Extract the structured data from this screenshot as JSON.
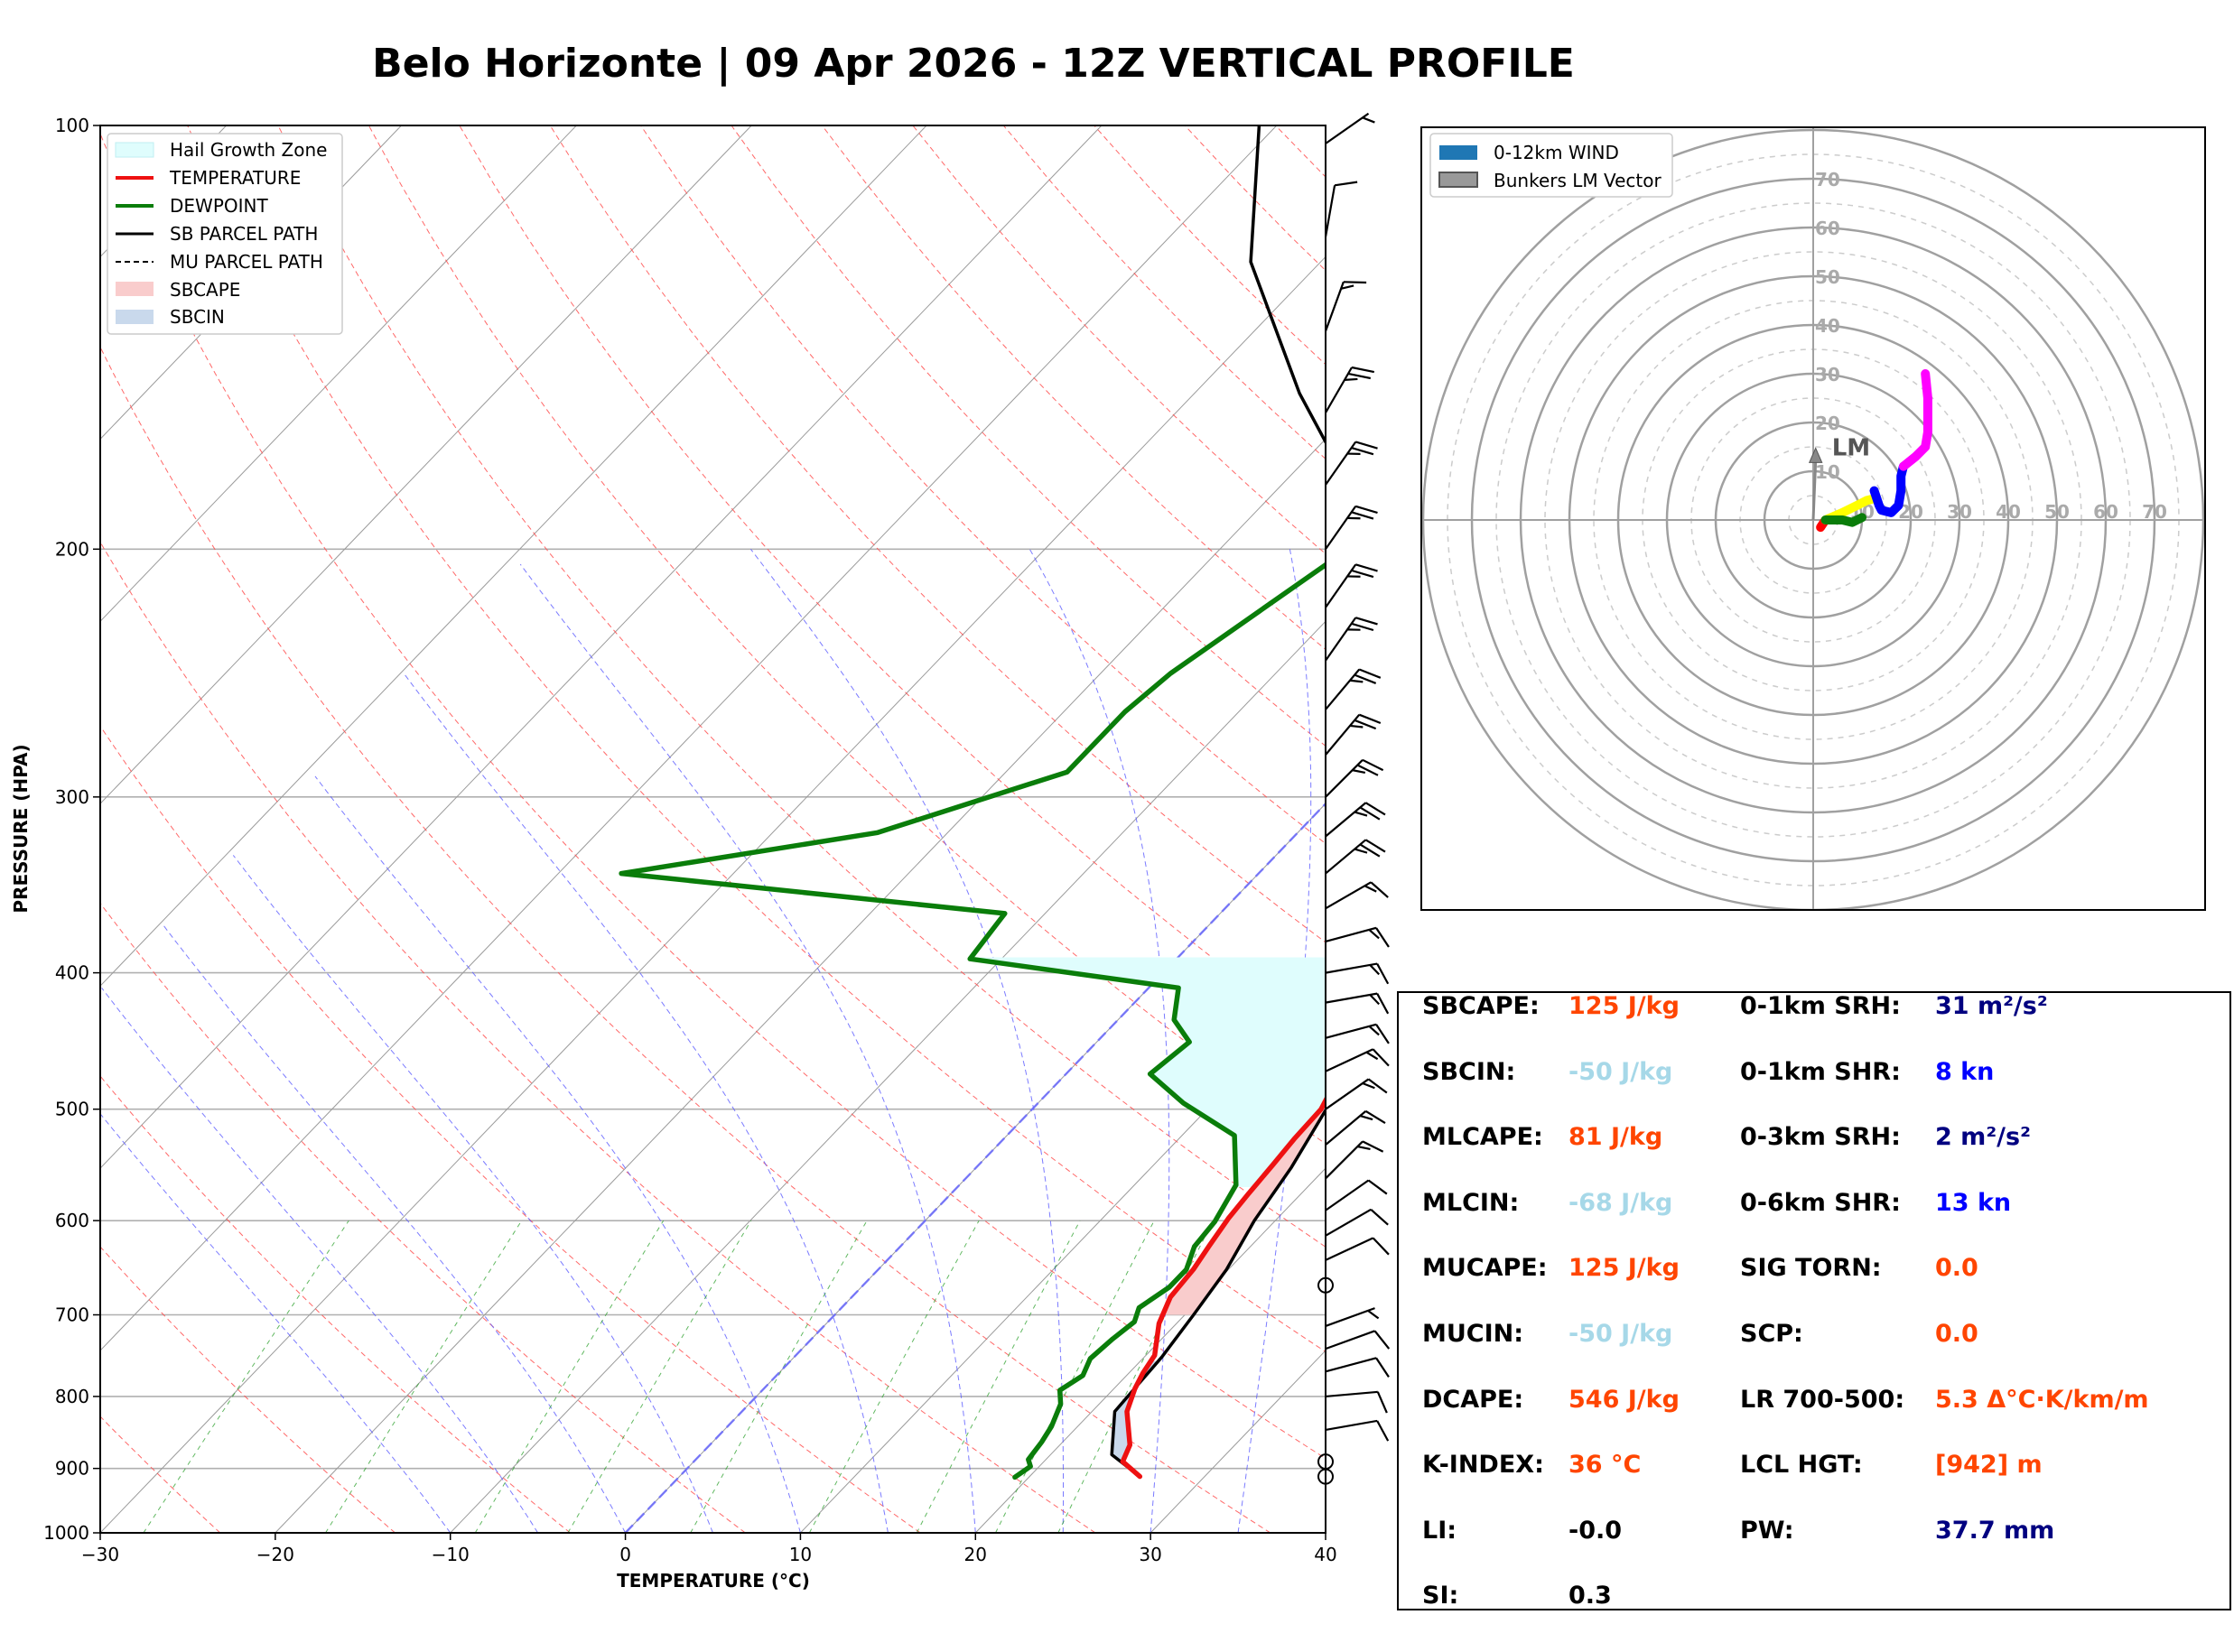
{
  "title": "Belo Horizonte | 09 Apr 2026 - 12Z VERTICAL PROFILE",
  "colors": {
    "temperature": "#ee1111",
    "dewpoint": "#0a7d0a",
    "parcel": "#000000",
    "hail": "#dffdfd",
    "sbcape": "#f9cccc",
    "sbcin": "#c9d9ec",
    "orange": "#ff4500",
    "lightblue": "#a6d8e8",
    "navy": "#000080",
    "blue": "#0000ff"
  },
  "chart_data": [
    {
      "type": "line",
      "title": "SKEW-T",
      "xlabel": "TEMPERATURE (°C)",
      "ylabel": "PRESSURE (HPA)",
      "xlim": [
        -30,
        40
      ],
      "ylim": [
        1000,
        100
      ],
      "x_ticks": [
        "−30",
        "−20",
        "−10",
        "0",
        "10",
        "20",
        "30",
        "40"
      ],
      "y_ticks": [
        "1000",
        "900",
        "800",
        "700",
        "600",
        "500",
        "400",
        "300",
        "200",
        "100"
      ],
      "legend": [
        "Hail Growth Zone",
        "TEMPERATURE",
        "DEWPOINT",
        "SB PARCEL PATH",
        "MU PARCEL PATH",
        "SBCAPE",
        "SBCIN"
      ],
      "series": [
        {
          "name": "TEMPERATURE",
          "points": [
            [
              26.3,
              912
            ],
            [
              24.5,
              890
            ],
            [
              24.0,
              866
            ],
            [
              22.0,
              820
            ],
            [
              21.2,
              790
            ],
            [
              20.8,
              770
            ],
            [
              20.5,
              748
            ],
            [
              19.0,
              710
            ],
            [
              18.2,
              680
            ],
            [
              18.0,
              650
            ],
            [
              17.6,
              625
            ],
            [
              17.2,
              598
            ],
            [
              17.0,
              575
            ],
            [
              16.8,
              548
            ],
            [
              16.6,
              525
            ],
            [
              16.5,
              500
            ],
            [
              15.5,
              468
            ],
            [
              14.3,
              440
            ],
            [
              12.9,
              408
            ],
            [
              11.4,
              372
            ],
            [
              9.8,
              345
            ],
            [
              5.7,
              300
            ],
            [
              -1.3,
              243
            ],
            [
              -6.2,
              200
            ],
            [
              -12.0,
              165
            ],
            [
              -18.8,
              130
            ],
            [
              -22.5,
              115
            ],
            [
              -21.0,
              100
            ]
          ]
        },
        {
          "name": "DEWPOINT",
          "points": [
            [
              19.2,
              913
            ],
            [
              19.5,
              897
            ],
            [
              19.0,
              887
            ],
            [
              18.8,
              862
            ],
            [
              18.5,
              840
            ],
            [
              17.8,
              810
            ],
            [
              17.0,
              792
            ],
            [
              17.5,
              773
            ],
            [
              17.0,
              752
            ],
            [
              17.2,
              728
            ],
            [
              17.5,
              708
            ],
            [
              17.0,
              692
            ],
            [
              17.6,
              669
            ],
            [
              17.6,
              650
            ],
            [
              16.8,
              626
            ],
            [
              16.6,
              601
            ],
            [
              15.8,
              566
            ],
            [
              13.0,
              522
            ],
            [
              8.3,
              495
            ],
            [
              4.8,
              472
            ],
            [
              5.3,
              448
            ],
            [
              3.2,
              432
            ],
            [
              1.7,
              410
            ],
            [
              -11.8,
              391
            ],
            [
              -12.3,
              363
            ],
            [
              -36.4,
              340
            ],
            [
              -24.0,
              318
            ],
            [
              -16.5,
              288
            ],
            [
              -16.5,
              261
            ],
            [
              -16.0,
              245
            ],
            [
              -12.1,
              193
            ],
            [
              -16.1,
              164
            ],
            [
              -19.8,
              142
            ],
            [
              -22.0,
              128
            ],
            [
              -23.6,
              118
            ],
            [
              -22.1,
              100
            ]
          ]
        },
        {
          "name": "SB PARCEL PATH",
          "points": [
            [
              26.3,
              912
            ],
            [
              23.5,
              880
            ],
            [
              21.3,
              820
            ],
            [
              21.0,
              750
            ],
            [
              20.5,
              700
            ],
            [
              19.9,
              650
            ],
            [
              18.8,
              600
            ],
            [
              18.0,
              550
            ],
            [
              16.8,
              500
            ],
            [
              13.5,
              430
            ],
            [
              10.0,
              370
            ],
            [
              6.0,
              320
            ],
            [
              -1.5,
              250
            ],
            [
              -12.0,
              195
            ],
            [
              -24.0,
              155
            ],
            [
              -34.0,
              125
            ],
            [
              -41.0,
              100
            ]
          ]
        }
      ],
      "hail_growth_zone_hPa": [
        390,
        568
      ],
      "sbcape_hPa": [
        500,
        700
      ],
      "sbcin_hPa": [
        755,
        912
      ]
    },
    {
      "type": "scatter",
      "title": "HODOGRAPH",
      "legend": [
        "0-12km WIND",
        "Bunkers LM Vector"
      ],
      "ring_labels": [
        "10",
        "20",
        "30",
        "40",
        "50",
        "60",
        "70"
      ],
      "ring_labels_shown_x": [
        "10",
        "20",
        "30",
        "40",
        "50",
        "60",
        "70"
      ],
      "ring_labels_shown_y": [
        "10",
        "20",
        "30",
        "40",
        "50",
        "60",
        "70"
      ],
      "lm_label": "LM",
      "bunkers_lm_uv": [
        0.5,
        14
      ],
      "segments": [
        {
          "color": "#ff0000",
          "points": [
            [
              1.5,
              -1.5
            ],
            [
              2.5,
              0
            ]
          ]
        },
        {
          "color": "#ffff00",
          "points": [
            [
              2.5,
              0
            ],
            [
              6,
              1.5
            ],
            [
              9,
              3
            ],
            [
              11,
              4
            ],
            [
              13,
              4.5
            ]
          ]
        },
        {
          "color": "#0a7d0a",
          "points": [
            [
              2.5,
              0
            ],
            [
              6,
              0
            ],
            [
              8,
              -0.5
            ],
            [
              10,
              0.5
            ]
          ]
        },
        {
          "color": "#0000ff",
          "points": [
            [
              12.5,
              6
            ],
            [
              13.5,
              3
            ],
            [
              14,
              2
            ],
            [
              16,
              1.5
            ],
            [
              17.5,
              3
            ],
            [
              18,
              6
            ],
            [
              18,
              9
            ],
            [
              18.5,
              11
            ]
          ]
        },
        {
          "color": "#ff00ff",
          "points": [
            [
              18.5,
              11
            ],
            [
              21,
              13
            ],
            [
              23,
              15
            ],
            [
              23.5,
              18
            ],
            [
              23.5,
              25
            ],
            [
              23,
              30
            ]
          ]
        }
      ]
    }
  ],
  "indices": [
    [
      {
        "label": "SBCAPE:",
        "value": "125 J/kg",
        "color": "orange"
      },
      {
        "label": "0-1km SRH:",
        "value": "31 m²/s²",
        "color": "navy"
      }
    ],
    [
      {
        "label": "SBCIN:",
        "value": "-50 J/kg",
        "color": "lightblue"
      },
      {
        "label": "0-1km SHR:",
        "value": "8 kn",
        "color": "blue"
      }
    ],
    [
      {
        "label": "MLCAPE:",
        "value": "81 J/kg",
        "color": "orange"
      },
      {
        "label": "0-3km SRH:",
        "value": "2 m²/s²",
        "color": "navy"
      }
    ],
    [
      {
        "label": "MLCIN:",
        "value": "-68 J/kg",
        "color": "lightblue"
      },
      {
        "label": "0-6km SHR:",
        "value": "13 kn",
        "color": "blue"
      }
    ],
    [
      {
        "label": "MUCAPE:",
        "value": "125 J/kg",
        "color": "orange"
      },
      {
        "label": "SIG TORN:",
        "value": "0.0",
        "color": "orange"
      }
    ],
    [
      {
        "label": "MUCIN:",
        "value": "-50 J/kg",
        "color": "lightblue"
      },
      {
        "label": "SCP:",
        "value": "0.0",
        "color": "orange"
      }
    ],
    [
      {
        "label": "DCAPE:",
        "value": "546 J/kg",
        "color": "orange"
      },
      {
        "label": "LR 700-500:",
        "value": "5.3 Δ°C·K/km/m",
        "color": "orange"
      }
    ],
    [
      {
        "label": "K-INDEX:",
        "value": "36 °C",
        "color": "orange"
      },
      {
        "label": "LCL HGT:",
        "value": "[942] m",
        "color": "orange"
      }
    ],
    [
      {
        "label": "LI:",
        "value": "-0.0",
        "color": "black"
      },
      {
        "label": "PW:",
        "value": "37.7 mm",
        "color": "navy"
      }
    ],
    [
      {
        "label": "SI:",
        "value": "0.3",
        "color": "black"
      },
      {
        "label": "",
        "value": "",
        "color": "black"
      }
    ]
  ],
  "wind_barbs": [
    {
      "p": 912,
      "dir": 90,
      "spd": 0,
      "calm": true
    },
    {
      "p": 890,
      "dir": 90,
      "spd": 0,
      "calm": true
    },
    {
      "p": 845,
      "dir": 80,
      "spd": 10
    },
    {
      "p": 800,
      "dir": 85,
      "spd": 10
    },
    {
      "p": 768,
      "dir": 75,
      "spd": 10
    },
    {
      "p": 740,
      "dir": 70,
      "spd": 10
    },
    {
      "p": 713,
      "dir": 70,
      "spd": 5
    },
    {
      "p": 667,
      "dir": 90,
      "spd": 0,
      "calm": true
    },
    {
      "p": 640,
      "dir": 65,
      "spd": 10
    },
    {
      "p": 615,
      "dir": 60,
      "spd": 10
    },
    {
      "p": 590,
      "dir": 55,
      "spd": 10
    },
    {
      "p": 560,
      "dir": 45,
      "spd": 15
    },
    {
      "p": 530,
      "dir": 50,
      "spd": 15
    },
    {
      "p": 500,
      "dir": 55,
      "spd": 15
    },
    {
      "p": 470,
      "dir": 65,
      "spd": 15
    },
    {
      "p": 445,
      "dir": 75,
      "spd": 15
    },
    {
      "p": 420,
      "dir": 80,
      "spd": 15
    },
    {
      "p": 400,
      "dir": 80,
      "spd": 15
    },
    {
      "p": 380,
      "dir": 75,
      "spd": 15
    },
    {
      "p": 360,
      "dir": 60,
      "spd": 15
    },
    {
      "p": 340,
      "dir": 50,
      "spd": 25
    },
    {
      "p": 320,
      "dir": 50,
      "spd": 25
    },
    {
      "p": 300,
      "dir": 45,
      "spd": 25
    },
    {
      "p": 280,
      "dir": 40,
      "spd": 25
    },
    {
      "p": 260,
      "dir": 40,
      "spd": 25
    },
    {
      "p": 240,
      "dir": 35,
      "spd": 25
    },
    {
      "p": 220,
      "dir": 35,
      "spd": 25
    },
    {
      "p": 200,
      "dir": 35,
      "spd": 25
    },
    {
      "p": 180,
      "dir": 35,
      "spd": 25
    },
    {
      "p": 160,
      "dir": 30,
      "spd": 25
    },
    {
      "p": 140,
      "dir": 20,
      "spd": 15
    },
    {
      "p": 120,
      "dir": 10,
      "spd": 10
    },
    {
      "p": 103,
      "dir": 55,
      "spd": 5
    }
  ]
}
